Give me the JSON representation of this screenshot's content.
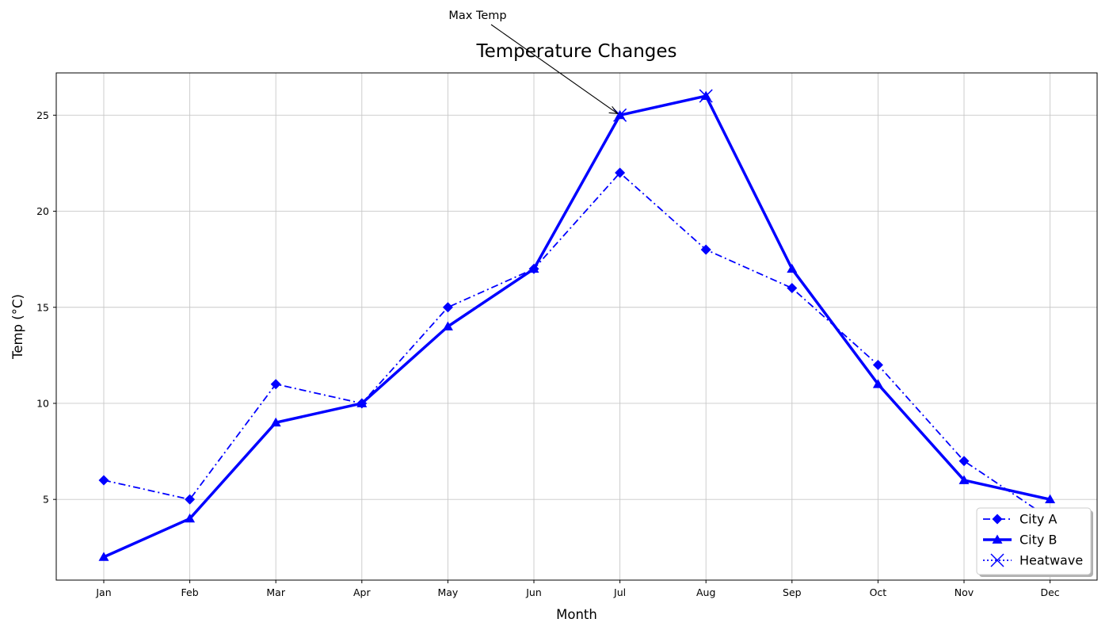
{
  "chart_data": {
    "type": "line",
    "title": "Temperature Changes",
    "xlabel": "Month",
    "ylabel": "Temp (°C)",
    "categories": [
      "Jan",
      "Feb",
      "Mar",
      "Apr",
      "May",
      "Jun",
      "Jul",
      "Aug",
      "Sep",
      "Oct",
      "Nov",
      "Dec"
    ],
    "ylim": [
      0.8,
      27.2
    ],
    "yticks": [
      5,
      10,
      15,
      20,
      25
    ],
    "grid": true,
    "legend_position": "lower-right",
    "series": [
      {
        "name": "City A",
        "values": [
          6,
          5,
          11,
          10,
          15,
          17,
          22,
          18,
          16,
          12,
          7,
          4
        ],
        "color": "#0000ff",
        "line_style": "dash-dot",
        "marker": "diamond"
      },
      {
        "name": "City B",
        "values": [
          2,
          4,
          9,
          10,
          14,
          17,
          25,
          26,
          17,
          11,
          6,
          5
        ],
        "color": "#0000ff",
        "line_style": "solid-thick",
        "marker": "triangle"
      },
      {
        "name": "Heatwave",
        "points": [
          {
            "x": "Jul",
            "y": 25
          },
          {
            "x": "Aug",
            "y": 26
          }
        ],
        "color": "#0000ff",
        "line_style": "dotted",
        "marker": "x"
      }
    ],
    "annotations": [
      {
        "text": "Max Temp",
        "x": "Jul",
        "y": 25
      }
    ]
  }
}
